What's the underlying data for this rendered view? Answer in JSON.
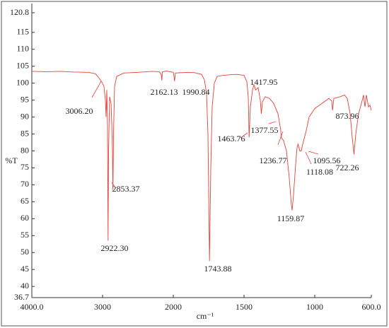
{
  "chart_data": {
    "type": "line",
    "x_label": "cm⁻¹",
    "y_label": "%T",
    "x": [
      4000,
      3800,
      3600,
      3400,
      3200,
      3100,
      3050,
      3006.2,
      2980,
      2960,
      2950,
      2940,
      2930,
      2922.3,
      2915,
      2900,
      2880,
      2870,
      2860,
      2853.37,
      2845,
      2830,
      2800,
      2700,
      2500,
      2300,
      2200,
      2170,
      2162.13,
      2155,
      2100,
      2000,
      1995,
      1990.84,
      1985,
      1900,
      1850,
      1800,
      1780,
      1765,
      1755,
      1743.88,
      1735,
      1725,
      1710,
      1690,
      1650,
      1600,
      1550,
      1500,
      1480,
      1470,
      1463.76,
      1455,
      1440,
      1430,
      1417.95,
      1400,
      1385,
      1377.55,
      1370,
      1350,
      1320,
      1290,
      1260,
      1240,
      1236.77,
      1220,
      1200,
      1180,
      1165,
      1159.87,
      1150,
      1135,
      1125,
      1118.08,
      1105,
      1095.56,
      1085,
      1060,
      1040,
      1000,
      950,
      900,
      880,
      873.96,
      865,
      820,
      790,
      770,
      750,
      735,
      722.26,
      710,
      690,
      670,
      655,
      645,
      635,
      620,
      610,
      600
    ],
    "values": [
      103.5,
      103.4,
      103.5,
      103.3,
      103.2,
      102.8,
      101.5,
      100.2,
      99,
      95,
      90,
      98,
      88,
      53.5,
      80,
      96,
      94,
      88,
      80,
      68.5,
      85,
      99,
      102,
      103,
      103.2,
      103.5,
      103.4,
      102.5,
      100.8,
      103.3,
      103.6,
      103.2,
      102,
      100.6,
      103,
      103.2,
      103.1,
      102.6,
      101,
      97,
      85,
      47.5,
      75,
      93,
      100,
      102,
      102.3,
      102.5,
      102.6,
      102.3,
      100.5,
      96,
      84,
      93,
      98,
      99.5,
      98,
      98.7,
      95,
      91,
      94.5,
      96,
      95.5,
      94,
      91,
      86,
      84,
      83,
      80,
      72,
      64,
      62.5,
      67,
      76,
      81,
      82,
      80,
      80,
      82,
      86,
      90,
      92.5,
      94,
      95.5,
      94.8,
      92,
      95.5,
      96,
      96.5,
      95.5,
      91,
      84,
      79,
      85,
      91,
      94,
      96.5,
      93,
      96.5,
      93,
      93.5,
      92
    ],
    "color": "#e8403a",
    "xlim": [
      4000,
      600
    ],
    "xticks": [
      {
        "value": 4000,
        "label": "4000.0"
      },
      3000,
      2000,
      1500,
      1000,
      {
        "value": 600,
        "label": "600.0"
      }
    ],
    "ylim": [
      36.7,
      120.8
    ],
    "yticks": [
      36.7,
      40,
      45,
      50,
      55,
      60,
      65,
      70,
      75,
      80,
      85,
      90,
      95,
      100,
      105,
      110,
      115,
      120.8
    ],
    "annotations": [
      {
        "x": 3006.2,
        "label": "3006.20"
      },
      {
        "x": 2922.3,
        "label": "2922.30"
      },
      {
        "x": 2853.37,
        "label": "2853.37"
      },
      {
        "x": 2162.13,
        "label": "2162.13"
      },
      {
        "x": 1990.84,
        "label": "1990.84"
      },
      {
        "x": 1743.88,
        "label": "1743.88"
      },
      {
        "x": 1463.76,
        "label": "1463.76"
      },
      {
        "x": 1417.95,
        "label": "1417.95"
      },
      {
        "x": 1377.55,
        "label": "1377.55"
      },
      {
        "x": 1236.77,
        "label": "1236.77"
      },
      {
        "x": 1159.87,
        "label": "1159.87"
      },
      {
        "x": 1118.08,
        "label": "1118.08"
      },
      {
        "x": 1095.56,
        "label": "1095.56"
      },
      {
        "x": 873.96,
        "label": "873.96"
      },
      {
        "x": 722.26,
        "label": "722.26"
      }
    ]
  }
}
